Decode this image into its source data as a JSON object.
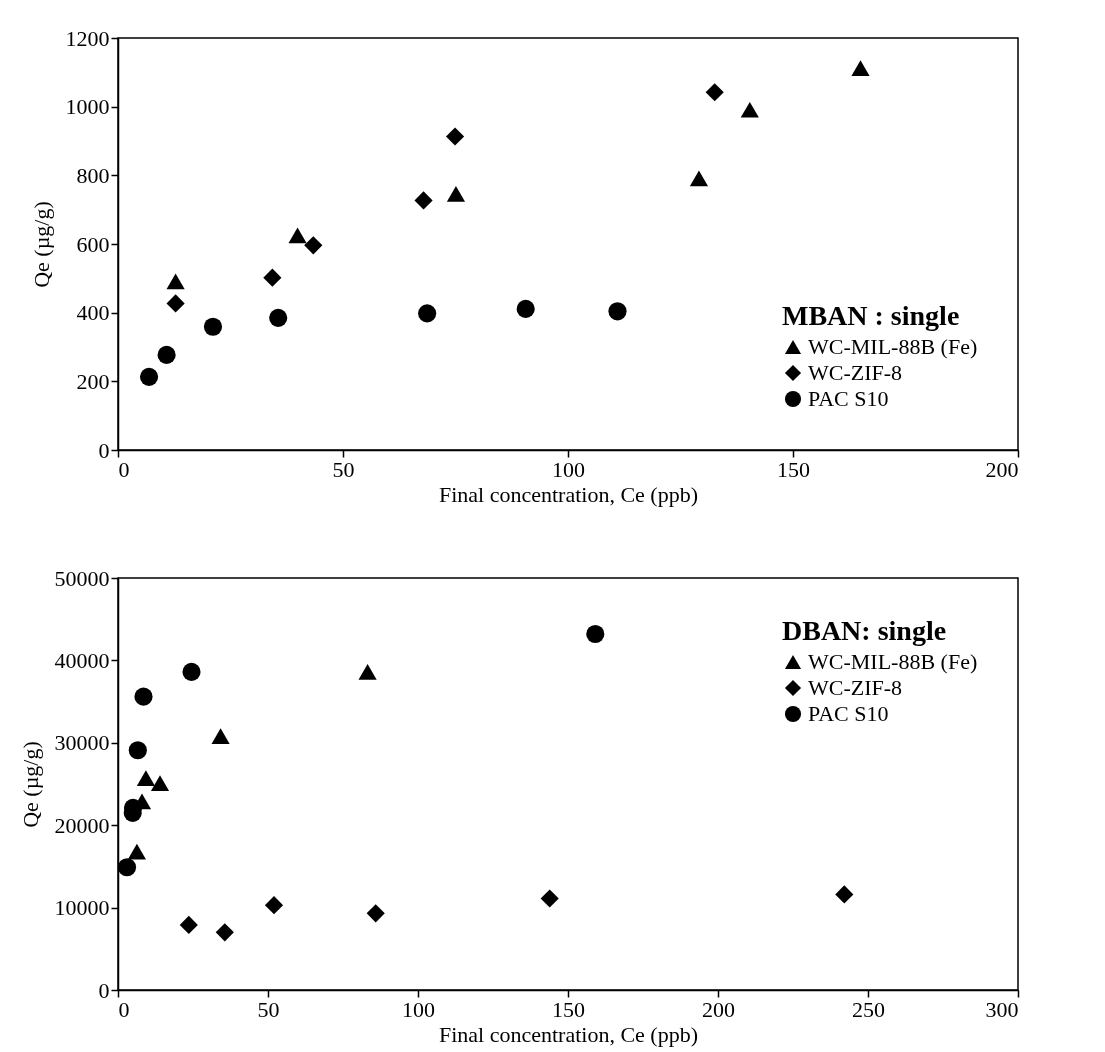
{
  "chart_data": [
    {
      "type": "scatter",
      "xlabel": "Final concentration, Ce (ppb)",
      "ylabel": "Qe (µg/g)",
      "legend_title": "MBAN : single",
      "legend": "bottom right",
      "xlim": [
        0,
        200
      ],
      "xticks": [
        0,
        50,
        100,
        150,
        200
      ],
      "ylim": [
        0,
        1200
      ],
      "yticks": [
        0,
        200,
        400,
        600,
        800,
        1000,
        1200
      ],
      "series": [
        {
          "name": "WC-MIL-88B (Fe)",
          "color": "#000000",
          "marker": "triangle",
          "x": [
            12.8,
            39.9,
            75.1,
            129.1,
            140.4,
            165.0
          ],
          "values": [
            491,
            625,
            746,
            791,
            991,
            1112
          ]
        },
        {
          "name": "WC-ZIF-8",
          "color": "#000000",
          "marker": "diamond",
          "x": [
            12.8,
            34.3,
            43.4,
            67.9,
            74.9,
            132.6
          ],
          "values": [
            427,
            502,
            596,
            727,
            913,
            1042
          ]
        },
        {
          "name": "PAC S10",
          "color": "#000000",
          "marker": "circle",
          "x": [
            6.9,
            10.8,
            21.1,
            35.6,
            68.7,
            90.6,
            111.0
          ],
          "values": [
            213,
            277,
            359,
            385,
            398,
            411,
            404
          ]
        }
      ]
    },
    {
      "type": "scatter",
      "xlabel": "Final concentration, Ce (ppb)",
      "ylabel": "Qe (µg/g)",
      "legend_title": "DBAN: single",
      "legend": "top right",
      "xlim": [
        0,
        300
      ],
      "xticks": [
        0,
        50,
        100,
        150,
        200,
        250,
        300
      ],
      "ylim": [
        0,
        50000
      ],
      "yticks": [
        0,
        10000,
        20000,
        30000,
        40000,
        50000
      ],
      "series": [
        {
          "name": "WC-MIL-88B (Fe)",
          "color": "#000000",
          "marker": "triangle",
          "x": [
            6.3,
            8.0,
            9.3,
            14.0,
            34.2,
            83.2
          ],
          "values": [
            16800,
            22900,
            25700,
            25100,
            30800,
            38600
          ]
        },
        {
          "name": "WC-ZIF-8",
          "color": "#000000",
          "marker": "diamond",
          "x": [
            23.6,
            35.6,
            52.0,
            85.9,
            143.9,
            242.1
          ],
          "values": [
            7900,
            7000,
            10300,
            9300,
            11100,
            11600
          ]
        },
        {
          "name": "PAC S10",
          "color": "#000000",
          "marker": "circle",
          "x": [
            3.0,
            4.9,
            5.0,
            6.6,
            8.5,
            24.5,
            159.1
          ],
          "values": [
            14900,
            21500,
            22100,
            29100,
            35600,
            38600,
            43200
          ]
        }
      ]
    }
  ]
}
